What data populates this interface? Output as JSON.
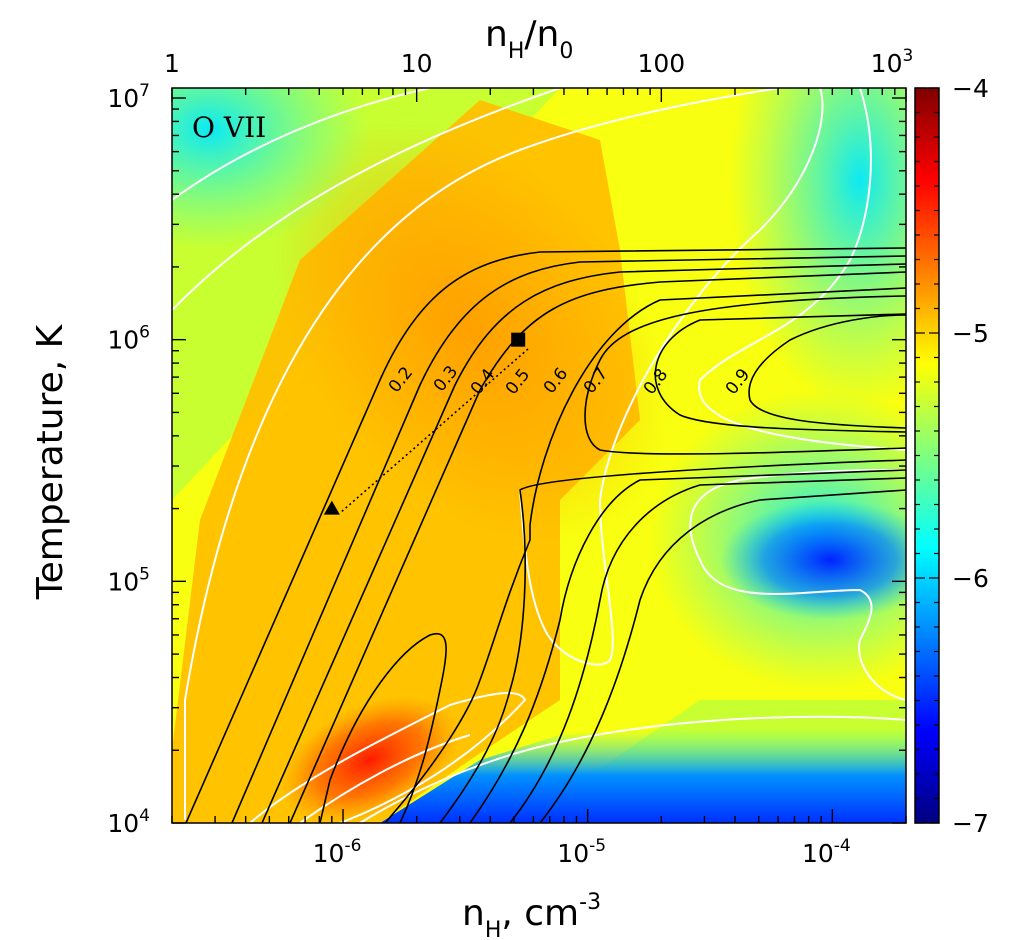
{
  "chart_data": {
    "type": "heatmap",
    "panel_label": "O VII",
    "xlabel": "n_H, cm^-3",
    "xlabel_base": "n",
    "xlabel_sub": "H",
    "xlabel_rest": ", cm",
    "xlabel_sup": "-3",
    "x_scale": "log",
    "xlim": [
      2e-07,
      0.0002
    ],
    "x_ticks": [
      {
        "value": 1e-06,
        "label_base": "10",
        "label_exp": "-6"
      },
      {
        "value": 1e-05,
        "label_base": "10",
        "label_exp": "-5"
      },
      {
        "value": 0.0001,
        "label_base": "10",
        "label_exp": "-4"
      }
    ],
    "top_xlabel": "n_H/n_0",
    "top_label_parts": {
      "n1": "n",
      "s1": "H",
      "slash": "/",
      "n2": "n",
      "s2": "0"
    },
    "top_x_ticks": [
      {
        "value": 1,
        "label": "1"
      },
      {
        "value": 10,
        "label": "10"
      },
      {
        "value": 100,
        "label": "100"
      },
      {
        "value": 1000,
        "label_base": "10",
        "label_exp": "3"
      }
    ],
    "ylabel": "Temperature, K",
    "y_scale": "log",
    "ylim": [
      10000.0,
      11000000.0
    ],
    "y_ticks": [
      {
        "value": 10000.0,
        "label_base": "10",
        "label_exp": "4"
      },
      {
        "value": 100000.0,
        "label_base": "10",
        "label_exp": "5"
      },
      {
        "value": 1000000.0,
        "label_base": "10",
        "label_exp": "6"
      },
      {
        "value": 10000000.0,
        "label_base": "10",
        "label_exp": "7"
      }
    ],
    "colorbar": {
      "range": [
        -7,
        -4
      ],
      "ticks": [
        {
          "value": -4,
          "label": "−4"
        },
        {
          "value": -5,
          "label": "−5"
        },
        {
          "value": -6,
          "label": "−6"
        },
        {
          "value": -7,
          "label": "−7"
        }
      ],
      "colormap": [
        "#00007f",
        "#0000ff",
        "#007fff",
        "#00ffff",
        "#7fff7f",
        "#ffff00",
        "#ff7f00",
        "#ff0000",
        "#7f0000"
      ]
    },
    "black_contour_levels": [
      "0.2",
      "0.3",
      "0.4",
      "0.5",
      "0.6",
      "0.7",
      "0.8",
      "0.9"
    ],
    "markers": [
      {
        "shape": "square",
        "n_H": 5.2e-06,
        "T": 1000000.0
      },
      {
        "shape": "triangle",
        "n_H": 9e-07,
        "T": 200000.0
      }
    ],
    "colors": {
      "black_contours": "#000000",
      "white_contours": "#ffffff"
    }
  }
}
